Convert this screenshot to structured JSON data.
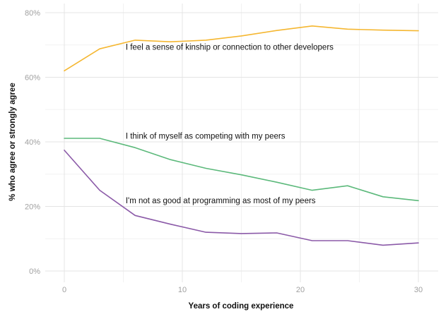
{
  "chart_data": {
    "type": "line",
    "xlabel": "Years of coding experience",
    "ylabel": "% who agree or strongly agree",
    "xlim": [
      0,
      30
    ],
    "ylim": [
      0,
      80
    ],
    "x_ticks": [
      0,
      10,
      20,
      30
    ],
    "x_tick_labels": [
      "0",
      "10",
      "20",
      "30"
    ],
    "y_ticks": [
      0,
      20,
      40,
      60,
      80
    ],
    "y_tick_labels": [
      "0%",
      "20%",
      "40%",
      "60%",
      "80%"
    ],
    "grid": true,
    "legend": "none",
    "x": [
      0,
      3,
      6,
      9,
      12,
      15,
      18,
      21,
      24,
      27,
      30
    ],
    "series": [
      {
        "name": "I feel a sense of kinship or connection to other developers",
        "color": "#f5b731",
        "values": [
          62,
          68.8,
          71.5,
          71.0,
          71.5,
          72.8,
          74.5,
          75.9,
          74.9,
          74.6,
          74.4
        ],
        "label_at": [
          5.2,
          68.5
        ]
      },
      {
        "name": "I think of myself as competing with my peers",
        "color": "#5cb97b",
        "values": [
          41.1,
          41.1,
          38.2,
          34.5,
          31.8,
          29.8,
          27.5,
          25.0,
          26.4,
          23.0,
          21.8
        ],
        "label_at": [
          5.2,
          41.0
        ]
      },
      {
        "name": "I'm not as good at programming as most of my peers",
        "color": "#8b5aa8",
        "values": [
          37.4,
          25.0,
          17.2,
          14.5,
          12.0,
          11.6,
          11.8,
          9.4,
          9.4,
          8.0,
          8.7
        ],
        "label_at": [
          5.2,
          21.0
        ]
      }
    ]
  }
}
